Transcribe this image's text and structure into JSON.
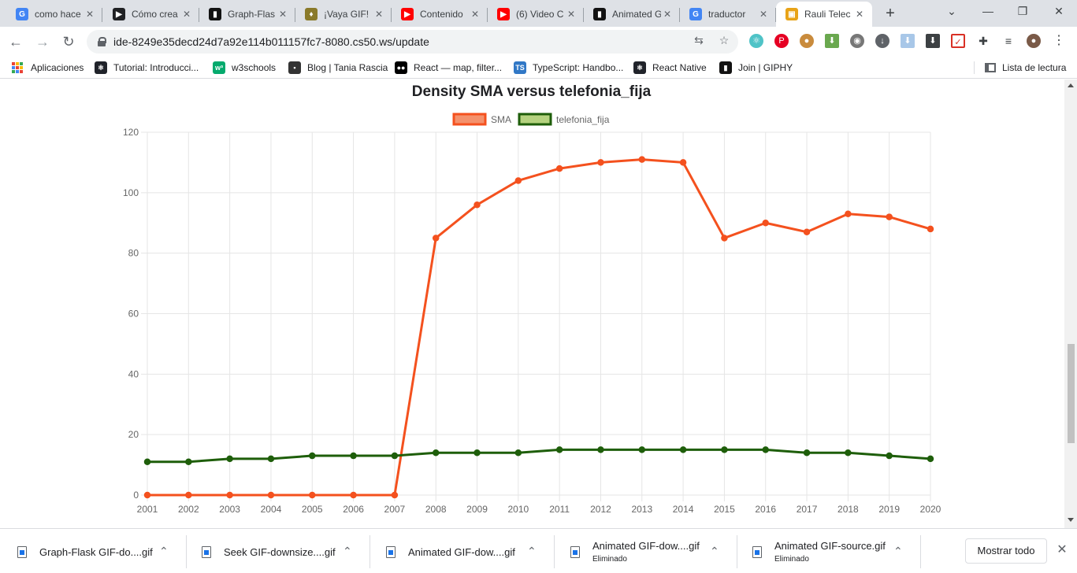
{
  "browser": {
    "tabs": [
      {
        "title": "como hace",
        "icon": "google-icon",
        "icon_color": "#4285f4",
        "icon_glyph": "G"
      },
      {
        "title": "Cómo crea",
        "icon": "play-icon",
        "icon_color": "#202124",
        "icon_glyph": "▶"
      },
      {
        "title": "Graph-Flas",
        "icon": "giphy-icon",
        "icon_color": "#121212",
        "icon_glyph": "▮"
      },
      {
        "title": "¡Vaya GIF!",
        "icon": "giphy-icon",
        "icon_color": "#8a7a2a",
        "icon_glyph": "♦"
      },
      {
        "title": "Contenido",
        "icon": "youtube-icon",
        "icon_color": "#ff0000",
        "icon_glyph": "▶"
      },
      {
        "title": "(6) Video C",
        "icon": "youtube-icon",
        "icon_color": "#ff0000",
        "icon_glyph": "▶"
      },
      {
        "title": "Animated G",
        "icon": "giphy-icon",
        "icon_color": "#121212",
        "icon_glyph": "▮"
      },
      {
        "title": "traductor",
        "icon": "google-icon",
        "icon_color": "#4285f4",
        "icon_glyph": "G"
      },
      {
        "title": "Rauli Telec",
        "icon": "cs50-icon",
        "icon_color": "#e8a317",
        "icon_glyph": "▣",
        "active": true
      }
    ],
    "url": "ide-8249e35decd24d7a92e114b011157fc7-8080.cs50.ws/update",
    "bookmarks": [
      {
        "label": "Aplicaciones",
        "icon": "apps-grid-icon"
      },
      {
        "label": "Tutorial: Introducci...",
        "icon": "react-icon",
        "icon_color": "#20232a",
        "icon_glyph": "⚛"
      },
      {
        "label": "w3schools",
        "icon": "w3schools-icon",
        "icon_color": "#04aa6d",
        "icon_glyph": "w³"
      },
      {
        "label": "Blog | Tania Rascia",
        "icon": "floppy-icon",
        "icon_color": "#333333",
        "icon_glyph": "▪"
      },
      {
        "label": "React — map, filter...",
        "icon": "medium-icon",
        "icon_color": "#000000",
        "icon_glyph": "●●"
      },
      {
        "label": "TypeScript: Handbo...",
        "icon": "typescript-icon",
        "icon_color": "#3178c6",
        "icon_glyph": "TS"
      },
      {
        "label": "React Native",
        "icon": "react-icon",
        "icon_color": "#20232a",
        "icon_glyph": "⚛"
      },
      {
        "label": "Join | GIPHY",
        "icon": "giphy-icon",
        "icon_color": "#121212",
        "icon_glyph": "▮"
      }
    ],
    "reading_list": "Lista de lectura"
  },
  "downloads": {
    "items": [
      {
        "name": "Graph-Flask GIF-do....gif",
        "status": ""
      },
      {
        "name": "Seek GIF-downsize....gif",
        "status": ""
      },
      {
        "name": "Animated GIF-dow....gif",
        "status": ""
      },
      {
        "name": "Animated GIF-dow....gif",
        "status": "Eliminado"
      },
      {
        "name": "Animated GIF-source.gif",
        "status": "Eliminado"
      }
    ],
    "show_all": "Mostrar todo"
  },
  "chart_data": {
    "type": "line",
    "title": "Density SMA versus telefonia_fija",
    "xlabel": "",
    "ylabel": "",
    "categories": [
      "2001",
      "2002",
      "2003",
      "2004",
      "2005",
      "2006",
      "2007",
      "2008",
      "2009",
      "2010",
      "2011",
      "2012",
      "2013",
      "2014",
      "2015",
      "2016",
      "2017",
      "2018",
      "2019",
      "2020"
    ],
    "ylim": [
      0,
      120
    ],
    "yticks": [
      0,
      20,
      40,
      60,
      80,
      100,
      120
    ],
    "grid": true,
    "legend": "top-center",
    "series": [
      {
        "name": "SMA",
        "color": "#f4511e",
        "fill": "#f4916c",
        "values": [
          0,
          0,
          0,
          0,
          0,
          0,
          0,
          85,
          96,
          104,
          108,
          110,
          111,
          110,
          85,
          90,
          87,
          93,
          92,
          88
        ]
      },
      {
        "name": "telefonia_fija",
        "color": "#1e5e0a",
        "fill": "#b5d27f",
        "values": [
          11,
          11,
          12,
          12,
          13,
          13,
          13,
          14,
          14,
          14,
          15,
          15,
          15,
          15,
          15,
          15,
          14,
          14,
          13,
          12
        ]
      }
    ]
  }
}
